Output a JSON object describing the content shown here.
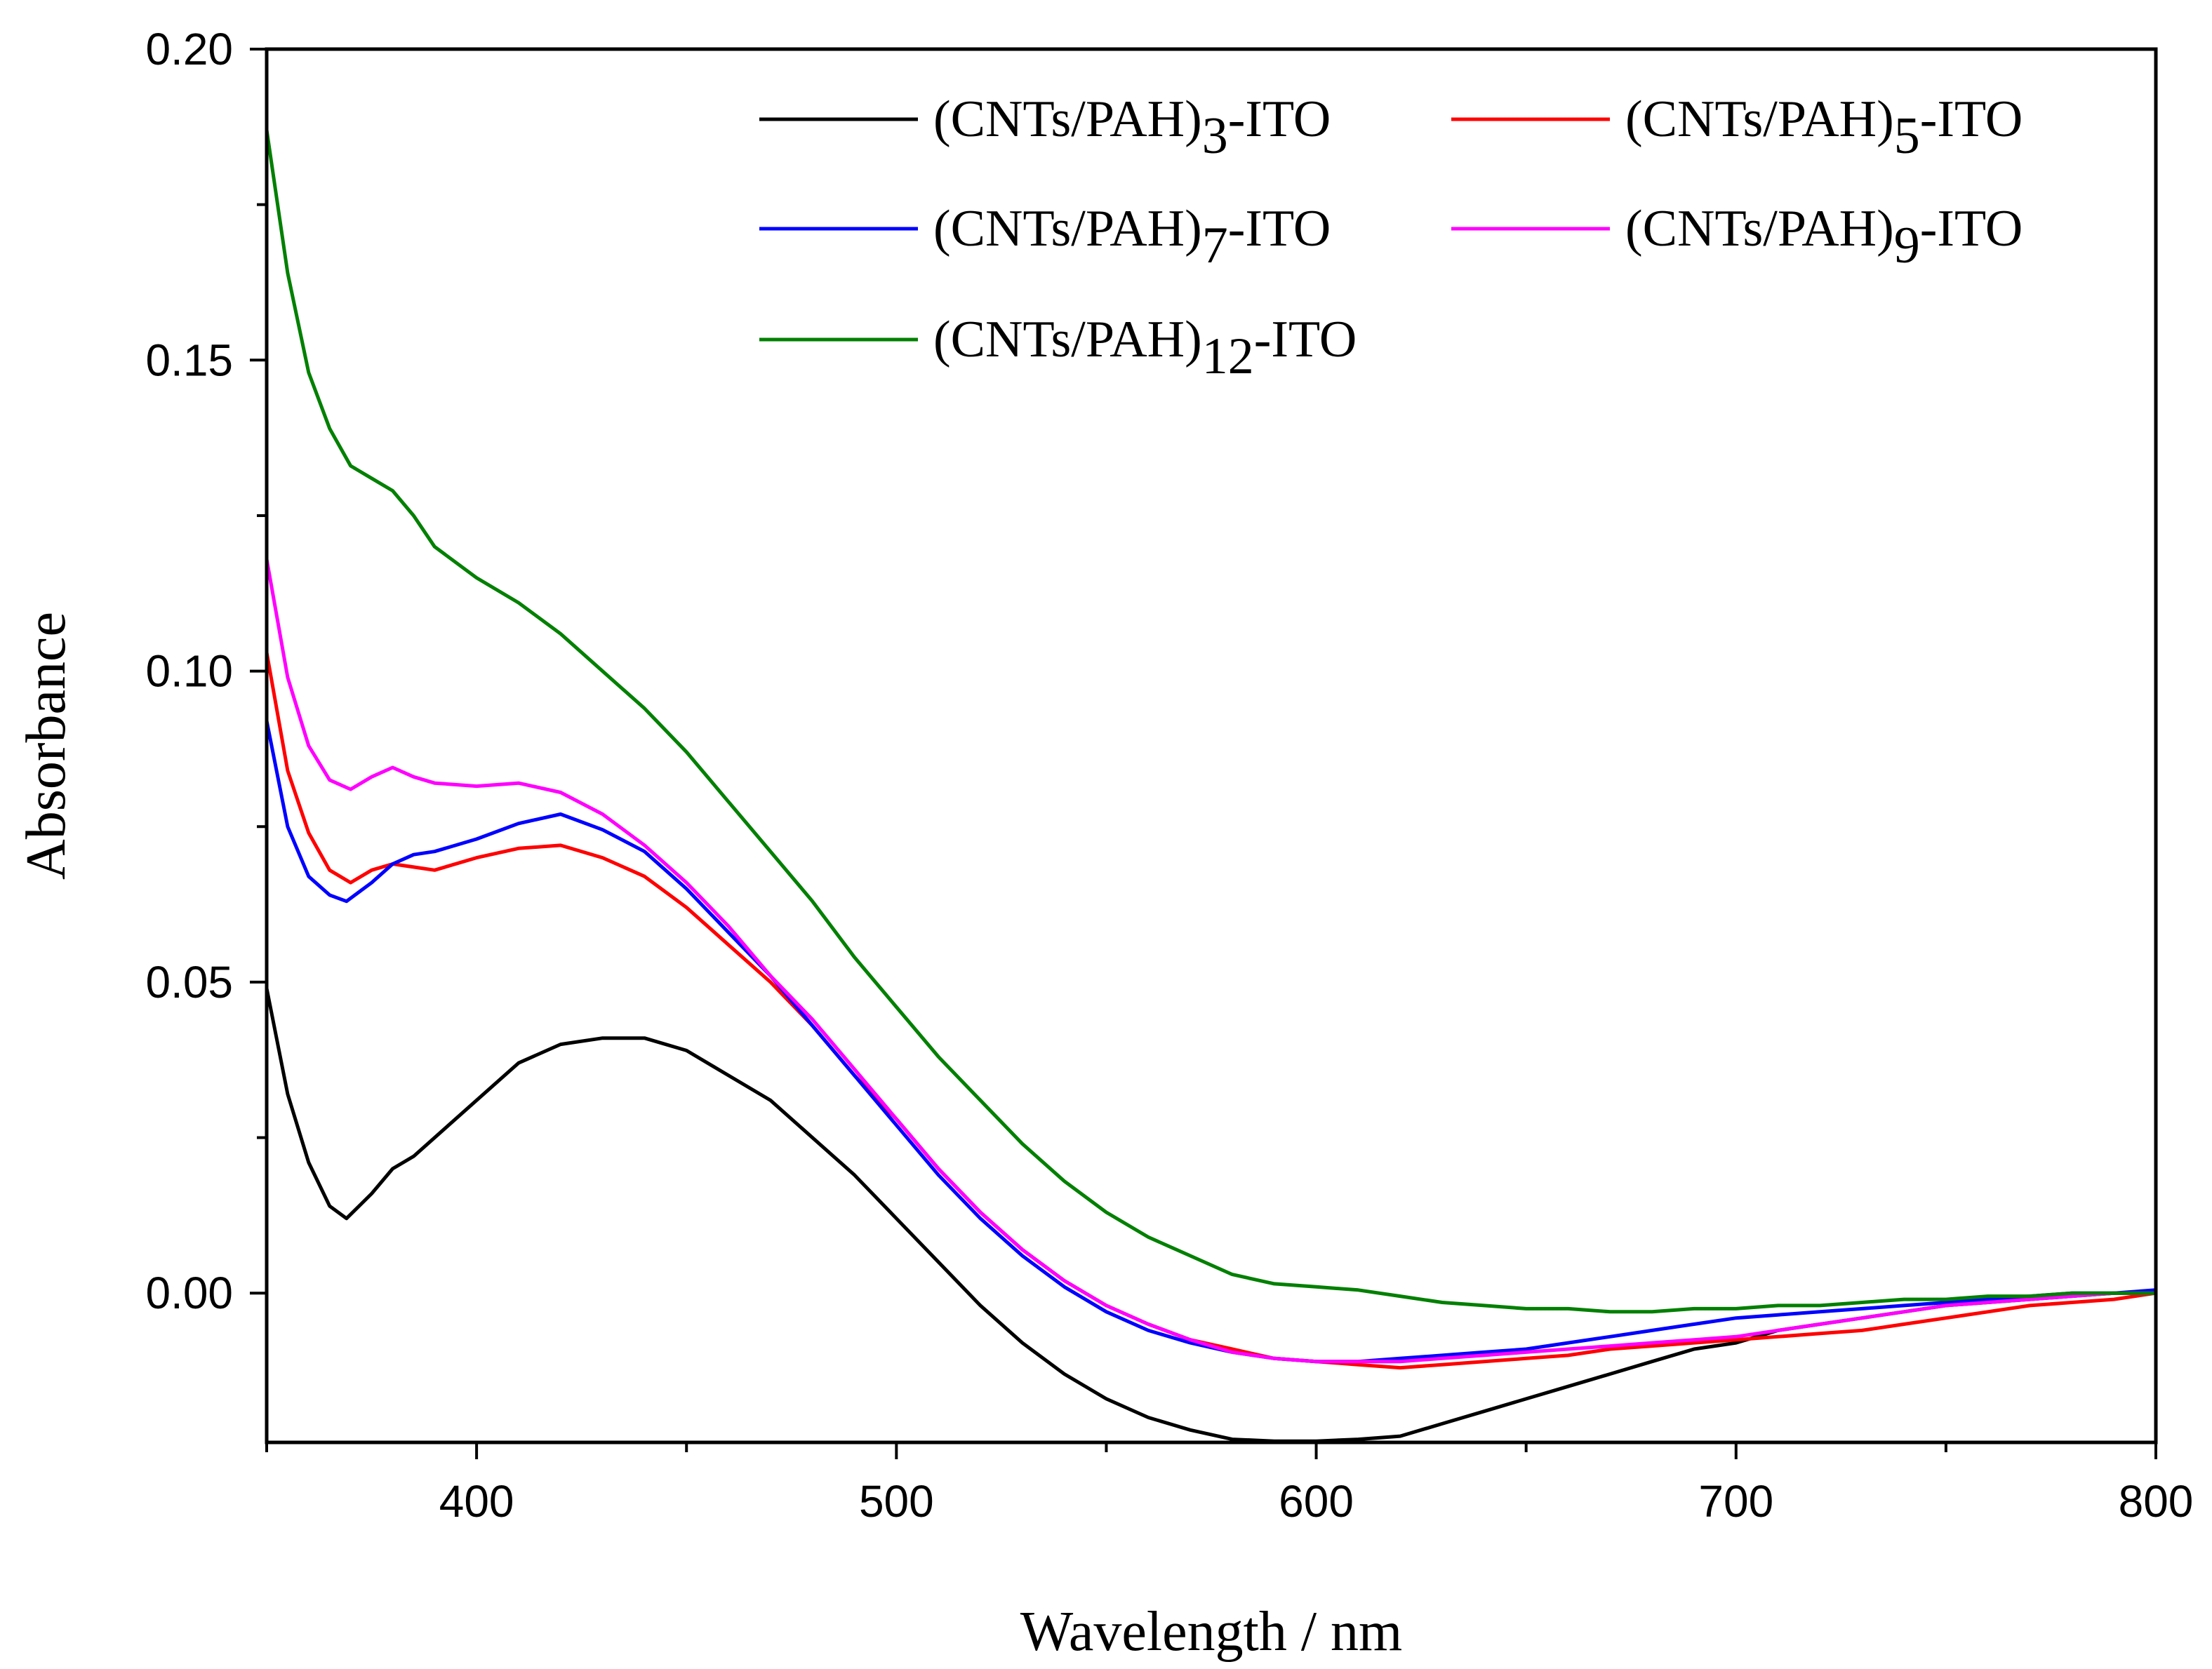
{
  "chart_data": {
    "type": "line",
    "title": "",
    "xlabel": "Wavelength / nm",
    "ylabel": "Absorbance",
    "xlim": [
      350,
      800
    ],
    "ylim": [
      -0.024,
      0.2
    ],
    "x_ticks": [
      400,
      500,
      600,
      700,
      800
    ],
    "x_tick_labels": [
      "400",
      "500",
      "600",
      "700",
      "800"
    ],
    "y_ticks": [
      0.0,
      0.05,
      0.1,
      0.15,
      0.2
    ],
    "y_tick_labels": [
      "0.00",
      "0.05",
      "0.10",
      "0.15",
      "0.20"
    ],
    "grid": false,
    "legend_position": "top-right",
    "series": [
      {
        "name": "(CNTs/PAH)3-ITO",
        "label_main": "(CNTs/PAH)",
        "label_sub": "3",
        "label_suffix": "-ITO",
        "color": "#000000",
        "x": [
          350,
          355,
          360,
          365,
          369,
          375,
          380,
          385,
          390,
          400,
          410,
          420,
          430,
          440,
          450,
          460,
          470,
          480,
          490,
          500,
          510,
          520,
          530,
          540,
          550,
          560,
          570,
          580,
          590,
          600,
          610,
          620,
          630,
          640,
          650,
          660,
          670,
          680,
          690,
          700,
          710,
          720,
          730,
          740,
          750,
          760,
          770,
          780,
          790,
          800
        ],
        "y": [
          0.049,
          0.032,
          0.021,
          0.014,
          0.012,
          0.016,
          0.02,
          0.022,
          0.025,
          0.031,
          0.037,
          0.04,
          0.041,
          0.041,
          0.039,
          0.035,
          0.031,
          0.025,
          0.019,
          0.012,
          0.005,
          -0.002,
          -0.008,
          -0.013,
          -0.017,
          -0.02,
          -0.022,
          -0.0235,
          -0.0238,
          -0.0238,
          -0.0235,
          -0.023,
          -0.021,
          -0.019,
          -0.017,
          -0.015,
          -0.013,
          -0.011,
          -0.009,
          -0.008,
          -0.006,
          -0.005,
          -0.004,
          -0.003,
          -0.002,
          -0.0015,
          -0.001,
          -0.0005,
          0.0,
          0.0
        ]
      },
      {
        "name": "(CNTs/PAH)5-ITO",
        "label_main": "(CNTs/PAH)",
        "label_sub": "5",
        "label_suffix": "-ITO",
        "color": "#ff0000",
        "x": [
          350,
          355,
          360,
          365,
          370,
          375,
          380,
          385,
          390,
          400,
          410,
          420,
          430,
          440,
          450,
          460,
          470,
          480,
          490,
          500,
          510,
          520,
          530,
          540,
          550,
          560,
          570,
          580,
          590,
          600,
          610,
          620,
          630,
          640,
          650,
          660,
          670,
          680,
          690,
          700,
          710,
          720,
          730,
          740,
          750,
          760,
          770,
          780,
          790,
          800
        ],
        "y": [
          0.103,
          0.084,
          0.074,
          0.068,
          0.066,
          0.068,
          0.069,
          0.0685,
          0.068,
          0.07,
          0.0715,
          0.072,
          0.07,
          0.067,
          0.062,
          0.056,
          0.05,
          0.043,
          0.035,
          0.028,
          0.02,
          0.013,
          0.007,
          0.002,
          -0.002,
          -0.005,
          -0.0075,
          -0.009,
          -0.0105,
          -0.011,
          -0.0115,
          -0.012,
          -0.0115,
          -0.011,
          -0.0105,
          -0.01,
          -0.009,
          -0.0085,
          -0.008,
          -0.0075,
          -0.007,
          -0.0065,
          -0.006,
          -0.005,
          -0.004,
          -0.003,
          -0.002,
          -0.0015,
          -0.001,
          0.0
        ]
      },
      {
        "name": "(CNTs/PAH)7-ITO",
        "label_main": "(CNTs/PAH)",
        "label_sub": "7",
        "label_suffix": "-ITO",
        "color": "#0000ff",
        "x": [
          350,
          355,
          360,
          365,
          369,
          375,
          380,
          385,
          390,
          400,
          410,
          420,
          430,
          440,
          450,
          460,
          470,
          480,
          490,
          500,
          510,
          520,
          530,
          540,
          550,
          560,
          570,
          580,
          590,
          600,
          610,
          620,
          630,
          640,
          650,
          660,
          670,
          680,
          690,
          700,
          710,
          720,
          730,
          740,
          750,
          760,
          770,
          780,
          790,
          800
        ],
        "y": [
          0.092,
          0.075,
          0.067,
          0.064,
          0.063,
          0.066,
          0.069,
          0.0705,
          0.071,
          0.073,
          0.0755,
          0.077,
          0.0745,
          0.071,
          0.065,
          0.058,
          0.051,
          0.043,
          0.035,
          0.027,
          0.019,
          0.012,
          0.006,
          0.001,
          -0.003,
          -0.006,
          -0.008,
          -0.0095,
          -0.0105,
          -0.011,
          -0.011,
          -0.0105,
          -0.01,
          -0.0095,
          -0.009,
          -0.008,
          -0.007,
          -0.006,
          -0.005,
          -0.004,
          -0.0035,
          -0.003,
          -0.0025,
          -0.002,
          -0.0015,
          -0.001,
          -0.0005,
          0.0,
          0.0,
          0.0005
        ]
      },
      {
        "name": "(CNTs/PAH)9-ITO",
        "label_main": "(CNTs/PAH)",
        "label_sub": "9",
        "label_suffix": "-ITO",
        "color": "#ff00ff",
        "x": [
          350,
          355,
          360,
          365,
          370,
          375,
          380,
          385,
          390,
          400,
          410,
          420,
          430,
          440,
          450,
          460,
          470,
          480,
          490,
          500,
          510,
          520,
          530,
          540,
          550,
          560,
          570,
          580,
          590,
          600,
          610,
          620,
          630,
          640,
          650,
          660,
          670,
          680,
          690,
          700,
          710,
          720,
          730,
          740,
          750,
          760,
          770,
          780,
          790,
          800
        ],
        "y": [
          0.118,
          0.099,
          0.088,
          0.0825,
          0.081,
          0.083,
          0.0845,
          0.083,
          0.082,
          0.0815,
          0.082,
          0.0805,
          0.077,
          0.072,
          0.066,
          0.059,
          0.051,
          0.044,
          0.036,
          0.028,
          0.02,
          0.013,
          0.007,
          0.002,
          -0.002,
          -0.005,
          -0.0075,
          -0.0095,
          -0.0105,
          -0.011,
          -0.011,
          -0.011,
          -0.0105,
          -0.01,
          -0.0095,
          -0.009,
          -0.0085,
          -0.008,
          -0.0075,
          -0.007,
          -0.006,
          -0.005,
          -0.004,
          -0.003,
          -0.002,
          -0.0015,
          -0.001,
          -0.0005,
          0.0,
          0.0
        ]
      },
      {
        "name": "(CNTs/PAH)12-ITO",
        "label_main": "(CNTs/PAH)",
        "label_sub": "12",
        "label_suffix": "-ITO",
        "color": "#008000",
        "x": [
          350,
          355,
          360,
          365,
          370,
          375,
          380,
          385,
          390,
          400,
          410,
          420,
          430,
          440,
          450,
          460,
          470,
          480,
          490,
          500,
          510,
          520,
          530,
          540,
          550,
          560,
          570,
          580,
          590,
          600,
          610,
          620,
          630,
          640,
          650,
          660,
          670,
          680,
          690,
          700,
          710,
          720,
          730,
          740,
          750,
          760,
          770,
          780,
          790,
          800
        ],
        "y": [
          0.187,
          0.164,
          0.148,
          0.139,
          0.133,
          0.131,
          0.129,
          0.125,
          0.12,
          0.115,
          0.111,
          0.106,
          0.1,
          0.094,
          0.087,
          0.079,
          0.071,
          0.063,
          0.054,
          0.046,
          0.038,
          0.031,
          0.024,
          0.018,
          0.013,
          0.009,
          0.006,
          0.003,
          0.0015,
          0.001,
          0.0005,
          -0.0005,
          -0.0015,
          -0.002,
          -0.0025,
          -0.0025,
          -0.003,
          -0.003,
          -0.0025,
          -0.0025,
          -0.002,
          -0.002,
          -0.0015,
          -0.001,
          -0.001,
          -0.0005,
          -0.0005,
          0.0,
          0.0,
          0.0
        ]
      }
    ]
  }
}
